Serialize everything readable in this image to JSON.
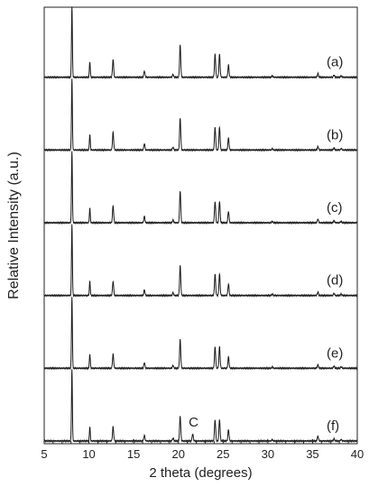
{
  "chart_data": {
    "type": "line",
    "title": "",
    "xlabel": "2 theta (degrees)",
    "ylabel": "Relative Intensity (a.u.)",
    "xlim": [
      5,
      40
    ],
    "xticks": [
      5,
      10,
      15,
      20,
      25,
      30,
      35,
      40
    ],
    "xtick_labels": [
      "5",
      "10",
      "15",
      "20",
      "25",
      "30",
      "35",
      "40"
    ],
    "grid": false,
    "legend": "none",
    "line_color": "#1a1a1a",
    "series_labels": [
      "(a)",
      "(b)",
      "(c)",
      "(d)",
      "(e)",
      "(f)"
    ],
    "peaks": [
      {
        "x": 8.1,
        "intensities": [
          1.0,
          1.0,
          1.0,
          1.0,
          1.0,
          1.0
        ]
      },
      {
        "x": 10.1,
        "intensities": [
          0.22,
          0.22,
          0.2,
          0.2,
          0.2,
          0.2
        ]
      },
      {
        "x": 12.7,
        "intensities": [
          0.25,
          0.25,
          0.24,
          0.2,
          0.2,
          0.2
        ]
      },
      {
        "x": 16.2,
        "intensities": [
          0.09,
          0.09,
          0.09,
          0.08,
          0.08,
          0.08
        ]
      },
      {
        "x": 19.4,
        "intensities": [
          0.04,
          0.04,
          0.04,
          0.04,
          0.04,
          0.04
        ]
      },
      {
        "x": 20.2,
        "intensities": [
          0.45,
          0.45,
          0.45,
          0.42,
          0.4,
          0.35
        ]
      },
      {
        "x": 21.6,
        "intensities": [
          0.0,
          0.0,
          0.0,
          0.0,
          0.0,
          0.1
        ]
      },
      {
        "x": 24.1,
        "intensities": [
          0.32,
          0.32,
          0.3,
          0.3,
          0.3,
          0.3
        ]
      },
      {
        "x": 24.6,
        "intensities": [
          0.32,
          0.32,
          0.3,
          0.3,
          0.3,
          0.3
        ]
      },
      {
        "x": 25.6,
        "intensities": [
          0.17,
          0.17,
          0.16,
          0.16,
          0.16,
          0.16
        ]
      },
      {
        "x": 30.5,
        "intensities": [
          0.02,
          0.02,
          0.02,
          0.02,
          0.02,
          0.02
        ]
      },
      {
        "x": 35.6,
        "intensities": [
          0.05,
          0.05,
          0.05,
          0.05,
          0.05,
          0.07
        ]
      },
      {
        "x": 37.4,
        "intensities": [
          0.03,
          0.03,
          0.03,
          0.03,
          0.03,
          0.03
        ]
      },
      {
        "x": 38.2,
        "intensities": [
          0.02,
          0.02,
          0.02,
          0.02,
          0.02,
          0.02
        ]
      }
    ],
    "annotations": [
      {
        "text": "C",
        "x": 21.6,
        "series": "(f)"
      }
    ]
  }
}
